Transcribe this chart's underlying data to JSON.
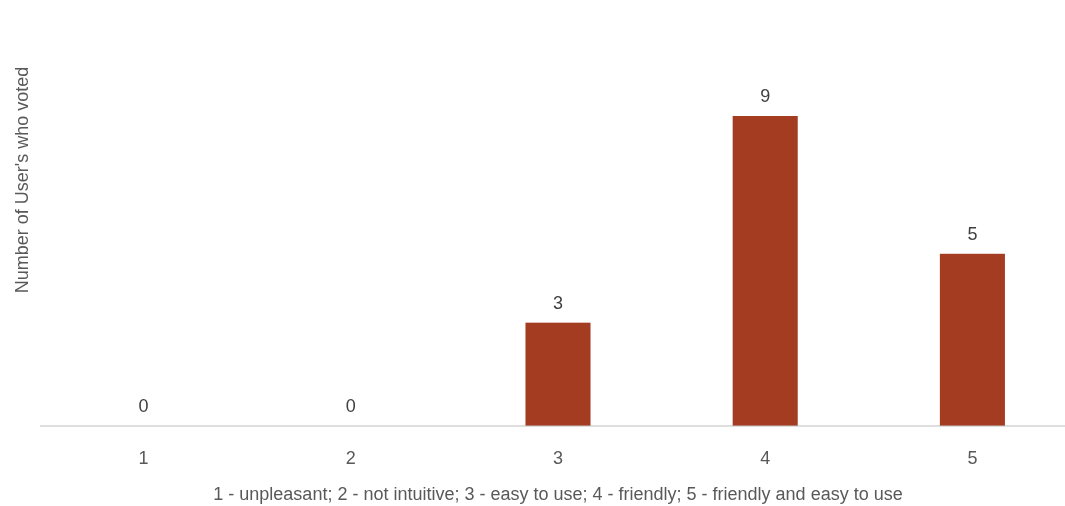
{
  "chart_data": {
    "type": "bar",
    "ylabel": "Number of User's who voted",
    "xlabel": "1 - unpleasant; 2 - not intuitive; 3 - easy to use; 4 - friendly; 5 - friendly and easy to use",
    "categories": [
      "1",
      "2",
      "3",
      "4",
      "5"
    ],
    "values": [
      0,
      0,
      3,
      9,
      5
    ],
    "color": "#a33c20",
    "data_labels": true
  }
}
